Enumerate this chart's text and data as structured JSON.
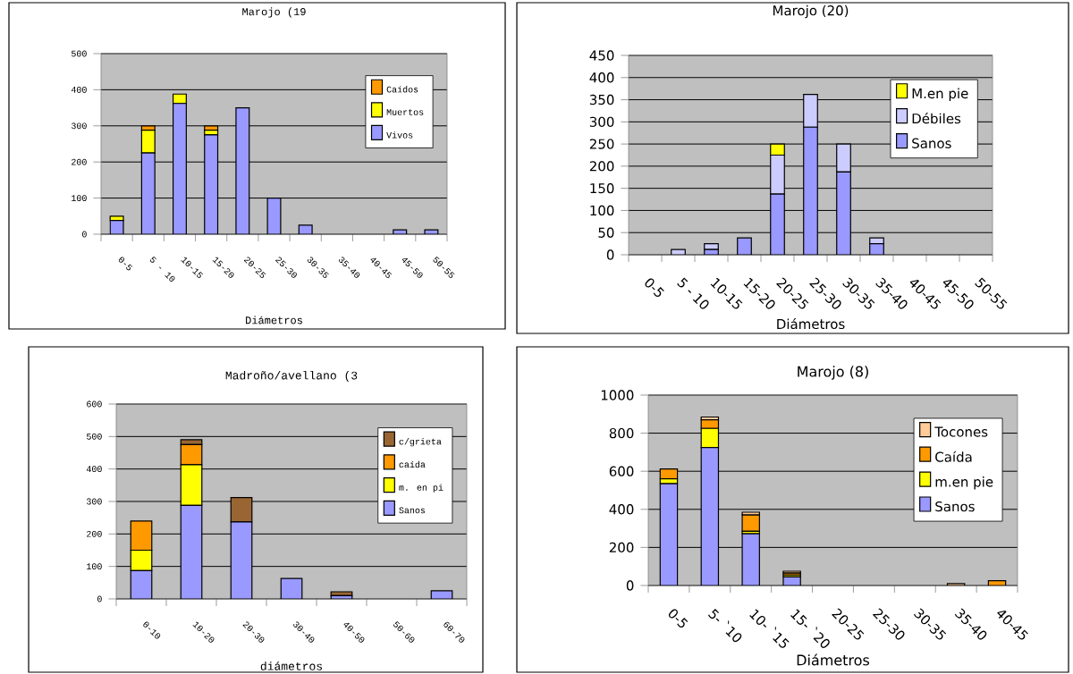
{
  "chart_data": [
    {
      "type": "bar",
      "stacked": true,
      "title": "Marojo (19",
      "xlabel": "Diámetros",
      "categories": [
        "0-5",
        "5 - 10",
        "10-15",
        "15-20",
        "20-25",
        "25-30",
        "30-35",
        "35-40",
        "40-45",
        "45-50",
        "50-55"
      ],
      "ylim": [
        0,
        500
      ],
      "yticks": [
        0,
        100,
        200,
        300,
        400,
        500
      ],
      "grid": "y",
      "legend": "top right",
      "series": [
        {
          "name": "Vivos",
          "color": "#9999ff",
          "values": [
            38,
            225,
            362,
            275,
            350,
            100,
            25,
            0,
            0,
            12,
            12
          ]
        },
        {
          "name": "Muertos",
          "color": "#ffff00",
          "values": [
            12,
            63,
            26,
            13,
            0,
            0,
            0,
            0,
            0,
            0,
            0
          ]
        },
        {
          "name": "Caídos",
          "color": "#ff9900",
          "values": [
            0,
            12,
            0,
            12,
            0,
            0,
            0,
            0,
            0,
            0,
            0
          ]
        }
      ]
    },
    {
      "type": "bar",
      "stacked": true,
      "title": "Marojo (20)",
      "xlabel": "Diámetros",
      "categories": [
        "0-5",
        "5 - 10",
        "10-15",
        "15-20",
        "20-25",
        "25-30",
        "30-35",
        "35-40",
        "40-45",
        "45-50",
        "50-55"
      ],
      "ylim": [
        0,
        450
      ],
      "yticks": [
        0,
        50,
        100,
        150,
        200,
        250,
        300,
        350,
        400,
        450
      ],
      "grid": "y",
      "legend": "top right",
      "series": [
        {
          "name": "Sanos",
          "color": "#9999ff",
          "values": [
            0,
            0,
            12,
            38,
            137,
            288,
            187,
            25,
            0,
            0,
            0
          ]
        },
        {
          "name": "Débiles",
          "color": "#ccccff",
          "values": [
            0,
            12,
            13,
            0,
            88,
            74,
            63,
            13,
            0,
            0,
            0
          ]
        },
        {
          "name": "M.en pie",
          "color": "#ffff00",
          "values": [
            0,
            0,
            0,
            0,
            25,
            0,
            0,
            0,
            0,
            0,
            0
          ]
        }
      ]
    },
    {
      "type": "bar",
      "stacked": true,
      "title": "Madroño/avellano (3",
      "xlabel": "diámetros",
      "categories": [
        "0-10",
        "10-20",
        "20-30",
        "30-40",
        "40-50",
        "50-60",
        "60-70"
      ],
      "ylim": [
        0,
        600
      ],
      "yticks": [
        0,
        100,
        200,
        300,
        400,
        500,
        600
      ],
      "grid": "y",
      "legend": "top right",
      "series": [
        {
          "name": "Sanos",
          "color": "#9999ff",
          "values": [
            87,
            288,
            237,
            63,
            10,
            0,
            25
          ]
        },
        {
          "name": "m. en pi",
          "color": "#ffff00",
          "values": [
            63,
            125,
            0,
            0,
            0,
            0,
            0
          ]
        },
        {
          "name": "caída",
          "color": "#ff9900",
          "values": [
            90,
            62,
            0,
            0,
            0,
            0,
            0
          ]
        },
        {
          "name": "c/grieta",
          "color": "#996633",
          "values": [
            0,
            15,
            75,
            0,
            12,
            0,
            0
          ]
        }
      ]
    },
    {
      "type": "bar",
      "stacked": true,
      "title": "Marojo (8)",
      "xlabel": "Diámetros",
      "categories": [
        "0-5",
        "5- `10",
        "10- `15",
        "15- `20",
        "20-25",
        "25-30",
        "30-35",
        "35-40",
        "40-45"
      ],
      "ylim": [
        0,
        1000
      ],
      "yticks": [
        0,
        200,
        400,
        600,
        800,
        1000
      ],
      "grid": "y",
      "legend": "top right",
      "series": [
        {
          "name": "Sanos",
          "color": "#9999ff",
          "values": [
            535,
            725,
            272,
            45,
            0,
            0,
            0,
            0,
            0
          ]
        },
        {
          "name": "m.en pie",
          "color": "#ffff00",
          "values": [
            25,
            100,
            13,
            10,
            0,
            0,
            0,
            0,
            0
          ]
        },
        {
          "name": "Caída",
          "color": "#ff9900",
          "values": [
            52,
            45,
            85,
            10,
            0,
            0,
            0,
            0,
            25
          ]
        },
        {
          "name": "Tocones",
          "color": "#ffcc99",
          "values": [
            0,
            15,
            15,
            10,
            0,
            0,
            0,
            10,
            0
          ]
        }
      ]
    }
  ]
}
